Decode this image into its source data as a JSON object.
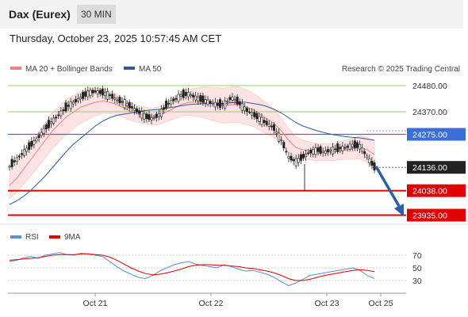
{
  "header": {
    "instrument": "Dax (Eurex)",
    "timeframe": "30 MIN"
  },
  "timestamp": "Thursday, October 23, 2025 10:57:45 AM CET",
  "legend": {
    "ma20": "MA 20 + Bollinger Bands",
    "ma50": "MA 50"
  },
  "credit": "Research © 2025 Trading Central",
  "colors": {
    "ma20": "#f08080",
    "band": "#fde0e0",
    "ma50": "#2d5aa0",
    "resistance": "#9acd6a",
    "support": "#e00000",
    "pivot": "#3a6fd8",
    "price": "#222222",
    "arrow": "#2a5fa8",
    "rsi": "#5b8ce0",
    "rsi_ma": "#e00000"
  },
  "chart_data": [
    {
      "type": "candlestick",
      "title": "Dax (Eurex)",
      "x_ticks": [
        "Oct 21",
        "Oct 22",
        "Oct 23",
        "Oct 25"
      ],
      "ylim": [
        23900,
        24520
      ],
      "levels": [
        {
          "label": "24480.00",
          "value": 24480,
          "kind": "resistance"
        },
        {
          "label": "24370.00",
          "value": 24370,
          "kind": "resistance"
        },
        {
          "label": "24275.00",
          "value": 24275,
          "kind": "pivot"
        },
        {
          "label": "24136.00",
          "value": 24136,
          "kind": "last"
        },
        {
          "label": "24038.00",
          "value": 24038,
          "kind": "support"
        },
        {
          "label": "23935.00",
          "value": 23935,
          "kind": "support"
        }
      ],
      "close_path": [
        24140,
        24170,
        24200,
        24230,
        24260,
        24300,
        24330,
        24360,
        24390,
        24410,
        24430,
        24450,
        24455,
        24450,
        24440,
        24420,
        24410,
        24390,
        24370,
        24350,
        24340,
        24360,
        24400,
        24420,
        24440,
        24445,
        24430,
        24420,
        24410,
        24400,
        24400,
        24430,
        24410,
        24380,
        24360,
        24340,
        24320,
        24300,
        24250,
        24180,
        24160,
        24180,
        24200,
        24210,
        24200,
        24210,
        24215,
        24220,
        24230,
        24225,
        24180,
        24136
      ],
      "series": [
        {
          "name": "MA 20",
          "values": [
            24060,
            24090,
            24130,
            24170,
            24210,
            24250,
            24290,
            24320,
            24350,
            24370,
            24390,
            24400,
            24410,
            24415,
            24410,
            24400,
            24385,
            24370,
            24360,
            24355,
            24350,
            24355,
            24370,
            24385,
            24400,
            24410,
            24410,
            24410,
            24405,
            24400,
            24395,
            24400,
            24400,
            24390,
            24380,
            24360,
            24340,
            24320,
            24290,
            24250,
            24220,
            24210,
            24205,
            24200,
            24200,
            24200,
            24205,
            24210,
            24215,
            24220,
            24210,
            24190
          ]
        },
        {
          "name": "MA 50",
          "values": [
            23980,
            23995,
            24015,
            24040,
            24070,
            24100,
            24135,
            24170,
            24205,
            24235,
            24260,
            24285,
            24310,
            24330,
            24345,
            24355,
            24360,
            24365,
            24370,
            24375,
            24378,
            24380,
            24385,
            24390,
            24395,
            24400,
            24402,
            24404,
            24405,
            24405,
            24405,
            24408,
            24410,
            24410,
            24405,
            24400,
            24392,
            24380,
            24365,
            24345,
            24325,
            24310,
            24300,
            24290,
            24282,
            24275,
            24270,
            24265,
            24262,
            24260,
            24255,
            24250
          ]
        }
      ]
    },
    {
      "type": "line",
      "legend": [
        "RSI",
        "9MA"
      ],
      "y_ticks": [
        70,
        50,
        30
      ],
      "ylim": [
        15,
        85
      ],
      "series": [
        {
          "name": "RSI",
          "values": [
            60,
            62,
            66,
            68,
            65,
            70,
            72,
            74,
            71,
            70,
            73,
            72,
            70,
            68,
            60,
            52,
            45,
            40,
            35,
            33,
            38,
            45,
            50,
            55,
            58,
            60,
            56,
            54,
            52,
            50,
            55,
            52,
            48,
            45,
            46,
            43,
            40,
            35,
            28,
            22,
            26,
            32,
            38,
            40,
            42,
            44,
            46,
            48,
            50,
            46,
            38,
            33
          ]
        },
        {
          "name": "9MA",
          "values": [
            62,
            63,
            64,
            65,
            66,
            68,
            70,
            71,
            71,
            71,
            72,
            72,
            71,
            70,
            67,
            62,
            56,
            50,
            45,
            41,
            39,
            40,
            42,
            45,
            48,
            52,
            54,
            55,
            55,
            54,
            54,
            53,
            52,
            50,
            49,
            47,
            45,
            42,
            38,
            33,
            30,
            30,
            32,
            35,
            38,
            40,
            42,
            44,
            46,
            47,
            46,
            44
          ]
        }
      ]
    }
  ]
}
